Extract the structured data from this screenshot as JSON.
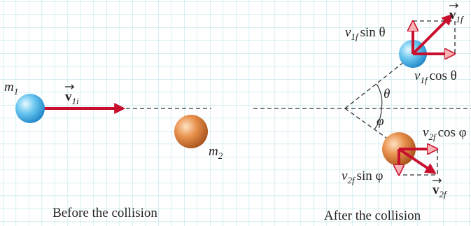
{
  "before": {
    "m1": {
      "base": "m",
      "sub": "1"
    },
    "v1i": {
      "base": "v",
      "sub": "1i"
    },
    "m2": {
      "base": "m",
      "sub": "2"
    },
    "caption": "Before the collision"
  },
  "after": {
    "v1f_sin": {
      "base": "v",
      "sub": "1f",
      "rest": "sin θ"
    },
    "v1f": {
      "base": "v",
      "sub": "1f"
    },
    "v1f_cos": {
      "base": "v",
      "sub": "1f",
      "rest": "cos θ"
    },
    "theta": "θ",
    "phi": "φ",
    "v2f_cos": {
      "base": "v",
      "sub": "2f",
      "rest": "cos φ"
    },
    "v2f_sin": {
      "base": "v",
      "sub": "2f",
      "rest": "sin φ"
    },
    "v2f": {
      "base": "v",
      "sub": "2f"
    },
    "caption": "After the collision"
  }
}
